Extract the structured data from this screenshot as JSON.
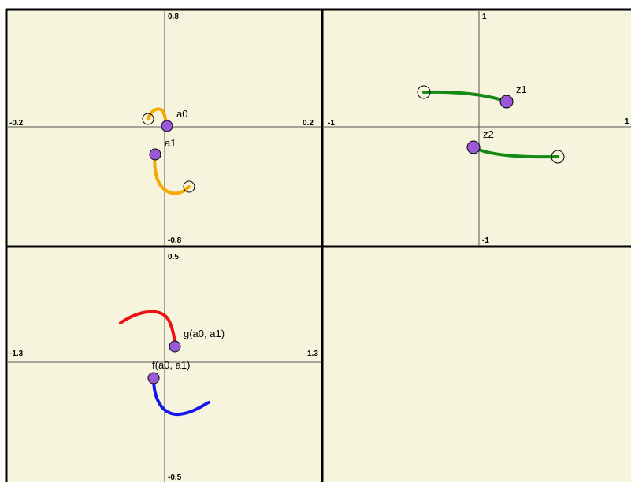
{
  "panels": [
    {
      "ymax": "0.8",
      "ymin": "-0.8",
      "xmin": "-0.2",
      "xmax": "0.2",
      "points": [
        "a0",
        "a1"
      ]
    },
    {
      "ymax": "1",
      "ymin": "-1",
      "xmin": "-1",
      "xmax": "1",
      "points": [
        "z1",
        "z2"
      ]
    },
    {
      "ymax": "0.5",
      "ymin": "-0.5",
      "xmin": "-1.3",
      "xmax": "1.3",
      "points": [
        "g(a0, a1)",
        "f(a0, a1)"
      ]
    }
  ]
}
